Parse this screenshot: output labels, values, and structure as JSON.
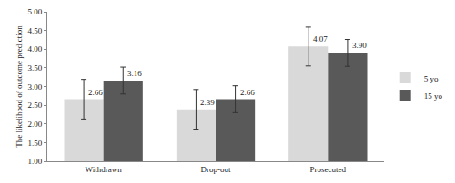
{
  "chart_data": {
    "type": "bar",
    "y_label": "The likelihood of outcome prediction",
    "categories": [
      "Withdrawn",
      "Drop-out",
      "Prosecuted"
    ],
    "series": [
      {
        "name": "5 yo",
        "color": "#d9d9d9",
        "values": [
          2.66,
          2.39,
          4.07
        ],
        "value_labels": [
          "2.66",
          "2.39",
          "4.07"
        ],
        "errors": [
          0.53,
          0.53,
          0.52
        ]
      },
      {
        "name": "15 yo",
        "color": "#595959",
        "values": [
          3.16,
          2.66,
          3.9
        ],
        "value_labels": [
          "3.16",
          "2.66",
          "3.90"
        ],
        "errors": [
          0.36,
          0.36,
          0.36
        ]
      }
    ],
    "ylim": [
      1,
      5
    ],
    "yticks": [
      {
        "value": 1,
        "label": "1.00"
      },
      {
        "value": 1.5,
        "label": "1.50"
      },
      {
        "value": 2,
        "label": "2.00"
      },
      {
        "value": 2.5,
        "label": "2.50"
      },
      {
        "value": 3,
        "label": "3.00"
      },
      {
        "value": 3.5,
        "label": "3.50"
      },
      {
        "value": 4,
        "label": "4.00"
      },
      {
        "value": 4.5,
        "label": "4.50"
      },
      {
        "value": 5,
        "label": "5.00"
      }
    ],
    "grid": false,
    "data_labels": true,
    "legend": "right"
  }
}
